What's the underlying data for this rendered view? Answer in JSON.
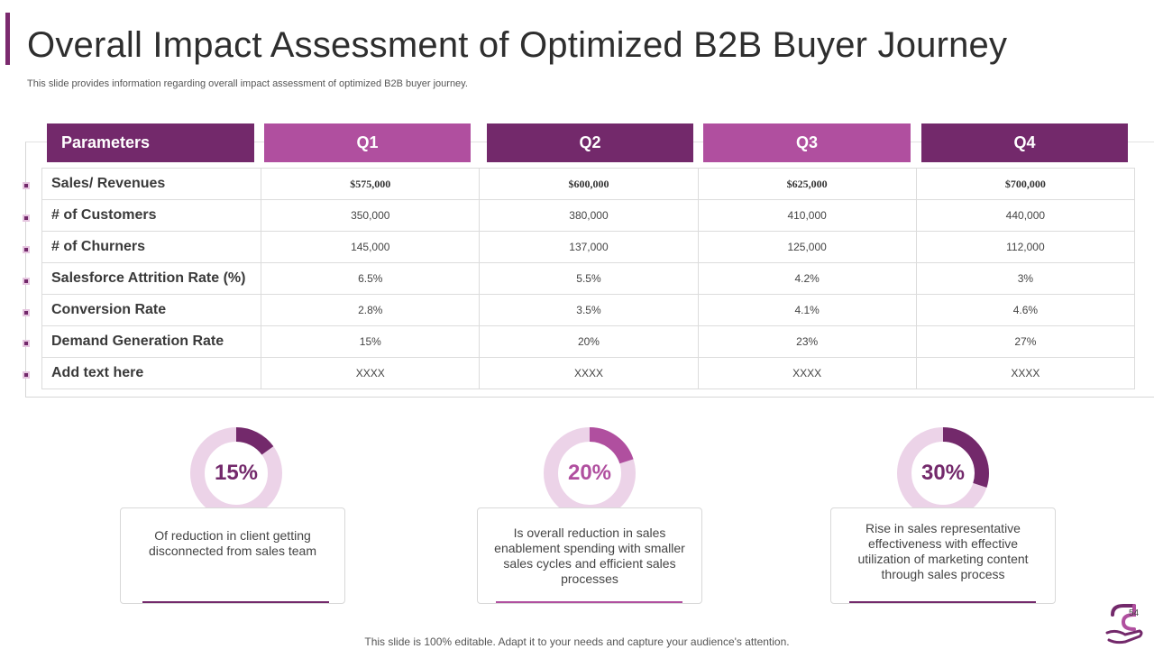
{
  "title": "Overall Impact Assessment of Optimized B2B Buyer Journey",
  "subtitle": "This slide provides information regarding overall impact assessment of optimized B2B buyer journey.",
  "table": {
    "headers": [
      "Parameters",
      "Q1",
      "Q2",
      "Q3",
      "Q4"
    ],
    "rows": [
      {
        "label": "Sales/ Revenues",
        "values": [
          "$575,000",
          "$600,000",
          "$625,000",
          "$700,000"
        ]
      },
      {
        "label": "# of Customers",
        "values": [
          "350,000",
          "380,000",
          "410,000",
          "440,000"
        ]
      },
      {
        "label": "# of Churners",
        "values": [
          "145,000",
          "137,000",
          "125,000",
          "112,000"
        ]
      },
      {
        "label": "Salesforce Attrition Rate  (%)",
        "values": [
          "6.5%",
          "5.5%",
          "4.2%",
          "3%"
        ]
      },
      {
        "label": "Conversion Rate",
        "values": [
          "2.8%",
          "3.5%",
          "4.1%",
          "4.6%"
        ]
      },
      {
        "label": "Demand Generation Rate",
        "values": [
          "15%",
          "20%",
          "23%",
          "27%"
        ]
      },
      {
        "label": "Add text here",
        "values": [
          "XXXX",
          "XXXX",
          "XXXX",
          "XXXX"
        ]
      }
    ]
  },
  "metrics": [
    {
      "percent_label": "15%",
      "fraction": 0.15,
      "color": "#73296b",
      "description": "Of reduction in client getting disconnected from sales team"
    },
    {
      "percent_label": "20%",
      "fraction": 0.2,
      "color": "#b04f9f",
      "description": "Is overall reduction in sales enablement spending with smaller sales cycles and efficient sales processes"
    },
    {
      "percent_label": "30%",
      "fraction": 0.3,
      "color": "#73296b",
      "description": "Rise in sales representative effectiveness with effective utilization of marketing content through sales process"
    }
  ],
  "colors": {
    "dark": "#73296b",
    "medium": "#b04f9f",
    "light": "#ecd3e8"
  },
  "footer": "This slide is 100% editable. Adapt it to your needs and capture your audience's attention.",
  "page_number": "54",
  "logo_icon": "hand-logo-icon"
}
